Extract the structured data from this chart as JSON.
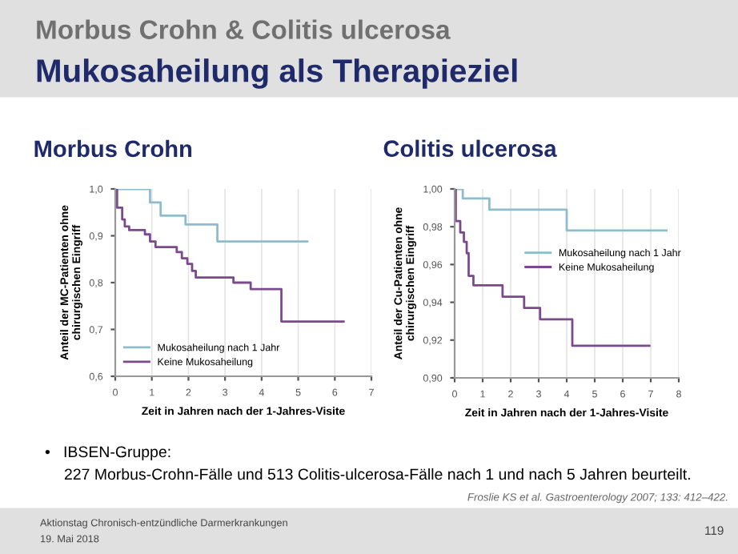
{
  "chart_data": [
    {
      "type": "step",
      "title": "Morbus Crohn",
      "xlabel": "Zeit in Jahren nach der 1-Jahres-Visite",
      "ylabel": "Anteil der MC-Patienten ohne\nchirurgischen Eingriff",
      "xlim": [
        0,
        7
      ],
      "xticks": [
        0,
        1,
        2,
        3,
        4,
        5,
        6,
        7
      ],
      "ylim": [
        0.6,
        1.0
      ],
      "yticks": [
        {
          "value": 0.6,
          "label": "0,6"
        },
        {
          "value": 0.7,
          "label": "0,7"
        },
        {
          "value": 0.8,
          "label": "0,8"
        },
        {
          "value": 0.9,
          "label": "0,9"
        },
        {
          "value": 1.0,
          "label": "1,0"
        }
      ],
      "grid": "x",
      "legend": "bottom left",
      "series": [
        {
          "name": "Mukosaheilung nach 1 Jahr",
          "color": "#8fbccb",
          "x": [
            0,
            0.95,
            1.24,
            1.92,
            2.79,
            5.25
          ],
          "values": [
            1.0,
            0.971,
            0.943,
            0.924,
            0.888,
            0.888
          ]
        },
        {
          "name": "Keine Mukosaheilung",
          "color": "#7b4a8c",
          "x": [
            0,
            0.05,
            0.19,
            0.26,
            0.38,
            0.81,
            0.95,
            1.1,
            1.68,
            1.82,
            1.97,
            2.1,
            2.2,
            3.23,
            3.7,
            4.54,
            6.24
          ],
          "values": [
            1.0,
            0.96,
            0.935,
            0.92,
            0.912,
            0.903,
            0.888,
            0.876,
            0.865,
            0.852,
            0.84,
            0.825,
            0.811,
            0.8,
            0.786,
            0.717,
            0.717
          ]
        }
      ],
      "annotations": [
        "Morbus Crohn & Colitis ulcerosa",
        "Mukosaheilung als Therapieziel",
        "•   IBSEN-Gruppe:",
        "227 Morbus-Crohn-Fälle und 513 Colitis-ulcerosa-Fälle nach 1 und nach 5 Jahren beurteilt.",
        "Froslie KS et al. Gastroenterology 2007; 133: 412–422.",
        "Aktionstag Chronisch-entzündliche Darmerkrankungen",
        "19. Mai 2018",
        "119"
      ]
    },
    {
      "type": "step",
      "title": "Colitis ulcerosa",
      "xlabel": "Zeit in Jahren nach der 1-Jahres-Visite",
      "ylabel": "Anteil der Cu-Patienten ohne\nchirurgischen Eingriff",
      "xlim": [
        0,
        8
      ],
      "xticks": [
        0,
        1,
        2,
        3,
        4,
        5,
        6,
        7,
        8
      ],
      "ylim": [
        0.9,
        1.0
      ],
      "yticks": [
        {
          "value": 0.9,
          "label": "0,90"
        },
        {
          "value": 0.92,
          "label": "0,92"
        },
        {
          "value": 0.94,
          "label": "0,94"
        },
        {
          "value": 0.96,
          "label": "0,96"
        },
        {
          "value": 0.98,
          "label": "0,98"
        },
        {
          "value": 1.0,
          "label": "1,00"
        }
      ],
      "grid": "x",
      "legend": "right",
      "series": [
        {
          "name": "Mukosaheilung nach 1 Jahr",
          "color": "#8fbccb",
          "x": [
            0,
            0.29,
            1.24,
            4.0,
            7.56
          ],
          "values": [
            1.0,
            0.995,
            0.989,
            0.978,
            0.978
          ]
        },
        {
          "name": "Keine Mukosaheilung",
          "color": "#7b4a8c",
          "x": [
            0,
            0.04,
            0.2,
            0.33,
            0.43,
            0.5,
            0.67,
            1.71,
            2.48,
            3.05,
            4.2,
            6.95
          ],
          "values": [
            1.0,
            0.983,
            0.977,
            0.972,
            0.966,
            0.954,
            0.949,
            0.943,
            0.937,
            0.931,
            0.917,
            0.917
          ]
        }
      ]
    }
  ]
}
